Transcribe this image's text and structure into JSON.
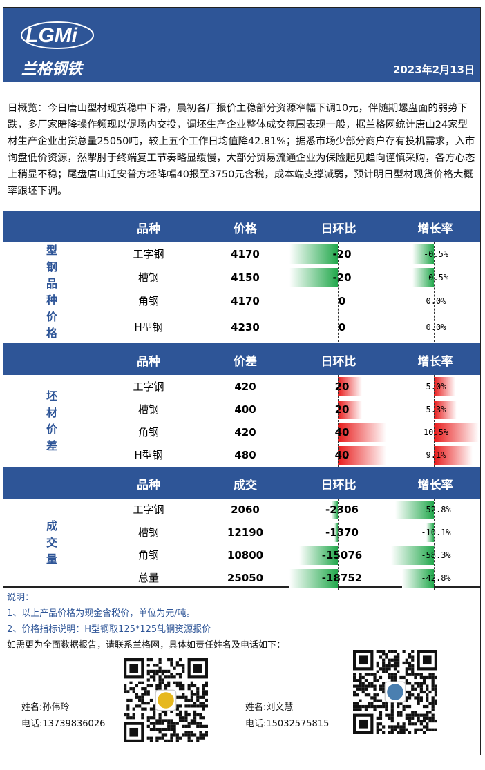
{
  "header": {
    "logo_text": "LGMi",
    "logo_cn": "兰格钢铁",
    "date": "2023年2月13日"
  },
  "overview": "日概览：今日唐山型材现货稳中下滑，晨初各厂报价主稳部分资源窄幅下调10元，伴随期螺盘面的弱势下跌，多厂家暗降操作频现以促场内交投，调坯生产企业整体成交氛围表现一般，据兰格网统计唐山24家型材生产企业出货总量25050吨，较上五个工作日均值降42.81%；据悉市场少部分商户存有投机需求，入市询盘低价资源，然掣肘于终端复工节奏略显缓慢，大部分贸易流通企业为保险起见趋向谨慎采购，各方心态上稍显不稳；尾盘唐山迁安普方坯降幅40报至3750元含税，成本端支撑减弱，预计明日型材现货价格大概率跟坯下调。",
  "colors": {
    "brand": "#2e5597",
    "up": "#e81b1b",
    "down": "#22a84c"
  },
  "sections": [
    {
      "label": [
        "型",
        "钢",
        "品",
        "种",
        "价",
        "格"
      ],
      "headers": [
        "品种",
        "价格",
        "日环比",
        "增长率"
      ],
      "rows": [
        {
          "name": "工字钢",
          "value": "4170",
          "change": "-20",
          "change_num": -20,
          "pct": "-0.5%",
          "pct_num": -0.5
        },
        {
          "name": "槽钢",
          "value": "4150",
          "change": "-20",
          "change_num": -20,
          "pct": "-0.5%",
          "pct_num": -0.5
        },
        {
          "name": "角钢",
          "value": "4170",
          "change": "0",
          "change_num": 0,
          "pct": "0.0%",
          "pct_num": 0
        },
        {
          "name": "H型钢",
          "value": "4230",
          "change": "0",
          "change_num": 0,
          "pct": "0.0%",
          "pct_num": 0
        }
      ]
    },
    {
      "label": [
        "坯",
        "材",
        "价",
        "差"
      ],
      "headers": [
        "品种",
        "价差",
        "日环比",
        "增长率"
      ],
      "rows": [
        {
          "name": "工字钢",
          "value": "420",
          "change": "20",
          "change_num": 20,
          "pct": "5.0%",
          "pct_num": 5.0
        },
        {
          "name": "槽钢",
          "value": "400",
          "change": "20",
          "change_num": 20,
          "pct": "5.3%",
          "pct_num": 5.3
        },
        {
          "name": "角钢",
          "value": "420",
          "change": "40",
          "change_num": 40,
          "pct": "10.5%",
          "pct_num": 10.5
        },
        {
          "name": "H型钢",
          "value": "480",
          "change": "40",
          "change_num": 40,
          "pct": "9.1%",
          "pct_num": 9.1
        }
      ]
    },
    {
      "label": [
        "成",
        "交",
        "量"
      ],
      "headers": [
        "品种",
        "成交",
        "日环比",
        "增长率"
      ],
      "rows": [
        {
          "name": "工字钢",
          "value": "2060",
          "change": "-2306",
          "change_num": -2306,
          "pct": "-52.8%",
          "pct_num": -52.8
        },
        {
          "name": "槽钢",
          "value": "12190",
          "change": "-1370",
          "change_num": -1370,
          "pct": "-10.1%",
          "pct_num": -10.1
        },
        {
          "name": "角钢",
          "value": "10800",
          "change": "-15076",
          "change_num": -15076,
          "pct": "-58.3%",
          "pct_num": -58.3
        },
        {
          "name": "总量",
          "value": "25050",
          "change": "-18752",
          "change_num": -18752,
          "pct": "-42.8%",
          "pct_num": -42.8
        }
      ]
    }
  ],
  "notes": {
    "title": "说明：",
    "items": [
      "1、以上产品价格为现金含税价，单位为元/吨。",
      "2、价格指标说明：H型钢取125*125轧钢资源报价"
    ],
    "contact_line": "如需更为全面数据报告，请联系兰格网，具体如责任姓名及电话如下："
  },
  "contacts": [
    {
      "name": "姓名:孙伟玲",
      "phone": "电话:13739836026",
      "qr_icon": "qr-code-icon"
    },
    {
      "name": "姓名:刘文慧",
      "phone": "电话:15032575815",
      "qr_icon": "qr-code-icon"
    }
  ]
}
